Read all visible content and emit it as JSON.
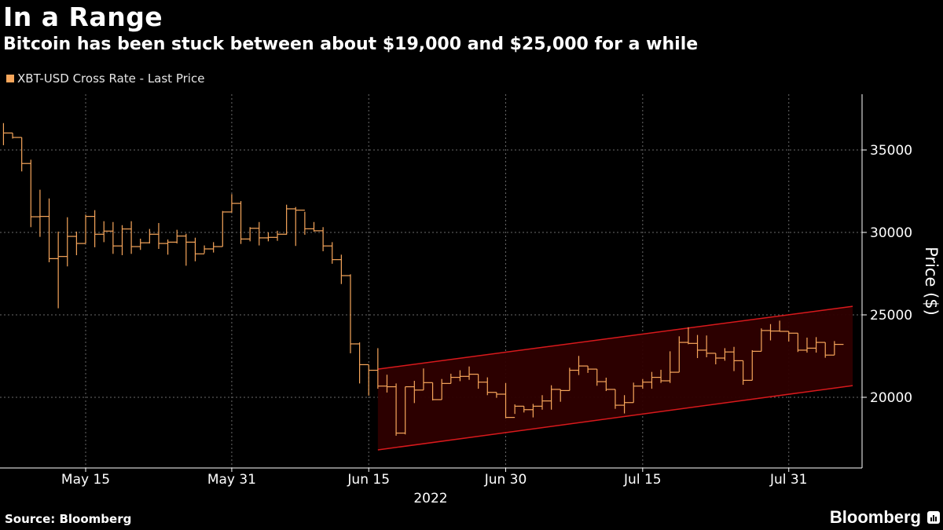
{
  "header": {
    "title": "In a Range",
    "subtitle": "Bitcoin has been stuck between about $19,000 and $25,000 for a while"
  },
  "footer": {
    "source": "Source: Bloomberg",
    "logo": "Bloomberg"
  },
  "colors": {
    "series": "#f7a65b",
    "channel_line": "#d8191c",
    "channel_fill": "#2e0000",
    "grid": "#6a6a6a",
    "background": "#000000"
  },
  "chart_data": {
    "type": "bar",
    "style": "high-low-close step bars",
    "title": "In a Range",
    "subtitle": "Bitcoin has been stuck between about $19,000 and $25,000 for a while",
    "legend": {
      "entries": [
        "XBT-USD Cross Rate - Last Price"
      ],
      "placement": "top-left"
    },
    "xlabel": "2022",
    "ylabel": "Price ($)",
    "x_ticks": [
      {
        "date": "2022-05-15",
        "label": "May 15"
      },
      {
        "date": "2022-05-31",
        "label": "May 31"
      },
      {
        "date": "2022-06-15",
        "label": "Jun 15"
      },
      {
        "date": "2022-06-30",
        "label": "Jun 30"
      },
      {
        "date": "2022-07-15",
        "label": "Jul 15"
      },
      {
        "date": "2022-07-31",
        "label": "Jul 31"
      }
    ],
    "y_ticks": [
      20000,
      25000,
      30000,
      35000
    ],
    "y_tick_labels": [
      "20000",
      "25000",
      "30000",
      "35000"
    ],
    "ylim": [
      15700,
      38400
    ],
    "xlim": [
      "2022-05-06",
      "2022-08-07"
    ],
    "y_axis_side": "right",
    "grid": true,
    "series": [
      {
        "name": "XBT-USD Cross Rate - Last Price",
        "fields": [
          "date",
          "high",
          "low",
          "close"
        ],
        "values": [
          [
            "2022-05-06",
            36630,
            35290,
            36030
          ],
          [
            "2022-05-07",
            36030,
            35690,
            35760
          ],
          [
            "2022-05-08",
            35760,
            33700,
            34180
          ],
          [
            "2022-05-09",
            34410,
            30320,
            30950
          ],
          [
            "2022-05-10",
            32590,
            29730,
            30970
          ],
          [
            "2022-05-11",
            32060,
            28190,
            28410
          ],
          [
            "2022-05-12",
            30050,
            25400,
            28540
          ],
          [
            "2022-05-13",
            30920,
            27940,
            29760
          ],
          [
            "2022-05-14",
            30050,
            28620,
            29330
          ],
          [
            "2022-05-15",
            31080,
            29330,
            30970
          ],
          [
            "2022-05-16",
            31350,
            29100,
            29890
          ],
          [
            "2022-05-17",
            30680,
            29410,
            30080
          ],
          [
            "2022-05-18",
            30630,
            28700,
            29180
          ],
          [
            "2022-05-19",
            30440,
            28620,
            30210
          ],
          [
            "2022-05-20",
            30680,
            28700,
            29140
          ],
          [
            "2022-05-21",
            29620,
            28940,
            29370
          ],
          [
            "2022-05-22",
            30210,
            29330,
            29890
          ],
          [
            "2022-05-23",
            30570,
            29000,
            29330
          ],
          [
            "2022-05-24",
            29570,
            28650,
            29410
          ],
          [
            "2022-05-25",
            30160,
            29330,
            29780
          ],
          [
            "2022-05-26",
            29920,
            27980,
            29410
          ],
          [
            "2022-05-27",
            29680,
            28250,
            28700
          ],
          [
            "2022-05-28",
            29210,
            28730,
            29000
          ],
          [
            "2022-05-29",
            29410,
            28780,
            29140
          ],
          [
            "2022-05-30",
            31300,
            29140,
            31240
          ],
          [
            "2022-05-31",
            32320,
            31210,
            31760
          ],
          [
            "2022-06-01",
            31900,
            29300,
            29600
          ],
          [
            "2022-06-02",
            30320,
            29460,
            30250
          ],
          [
            "2022-06-03",
            30630,
            29210,
            29670
          ],
          [
            "2022-06-04",
            30000,
            29460,
            29700
          ],
          [
            "2022-06-05",
            30100,
            29490,
            29890
          ],
          [
            "2022-06-06",
            31680,
            29860,
            31430
          ],
          [
            "2022-06-07",
            31540,
            29180,
            31350
          ],
          [
            "2022-06-08",
            31250,
            29860,
            30220
          ],
          [
            "2022-06-09",
            30630,
            30050,
            30100
          ],
          [
            "2022-06-10",
            30320,
            28860,
            29180
          ],
          [
            "2022-06-11",
            29410,
            28100,
            28350
          ],
          [
            "2022-06-12",
            28650,
            26870,
            27380
          ],
          [
            "2022-06-13",
            27460,
            22670,
            23240
          ],
          [
            "2022-06-14",
            23330,
            20840,
            21980
          ],
          [
            "2022-06-15",
            21980,
            20100,
            21640
          ],
          [
            "2022-06-16",
            22980,
            20520,
            20680
          ],
          [
            "2022-06-17",
            21370,
            20290,
            20640
          ],
          [
            "2022-06-18",
            20840,
            17670,
            17830
          ],
          [
            "2022-06-19",
            20640,
            17750,
            20640
          ],
          [
            "2022-06-20",
            21000,
            19650,
            20440
          ],
          [
            "2022-06-21",
            21750,
            20440,
            20890
          ],
          [
            "2022-06-22",
            20890,
            19810,
            19860
          ],
          [
            "2022-06-23",
            21110,
            19860,
            20840
          ],
          [
            "2022-06-24",
            21430,
            20840,
            21210
          ],
          [
            "2022-06-25",
            21640,
            20980,
            21270
          ],
          [
            "2022-06-26",
            21870,
            21060,
            21400
          ],
          [
            "2022-06-27",
            21400,
            20520,
            20920
          ],
          [
            "2022-06-28",
            21210,
            20130,
            20300
          ],
          [
            "2022-06-29",
            20300,
            19970,
            20190
          ],
          [
            "2022-06-30",
            20870,
            18730,
            18780
          ],
          [
            "2022-07-01",
            19570,
            18990,
            19460
          ],
          [
            "2022-07-02",
            19460,
            19080,
            19250
          ],
          [
            "2022-07-03",
            19600,
            18780,
            19460
          ],
          [
            "2022-07-04",
            20130,
            19250,
            19780
          ],
          [
            "2022-07-05",
            20730,
            19250,
            20480
          ],
          [
            "2022-07-06",
            20480,
            19730,
            20410
          ],
          [
            "2022-07-07",
            21790,
            20410,
            21640
          ],
          [
            "2022-07-08",
            22510,
            21350,
            21900
          ],
          [
            "2022-07-09",
            21900,
            21480,
            21710
          ],
          [
            "2022-07-10",
            21710,
            20700,
            20950
          ],
          [
            "2022-07-11",
            21190,
            20380,
            20480
          ],
          [
            "2022-07-12",
            20480,
            19300,
            19520
          ],
          [
            "2022-07-13",
            20130,
            19020,
            19680
          ],
          [
            "2022-07-14",
            20890,
            19680,
            20680
          ],
          [
            "2022-07-15",
            21110,
            20520,
            20920
          ],
          [
            "2022-07-16",
            21540,
            20520,
            21210
          ],
          [
            "2022-07-17",
            21670,
            20870,
            21000
          ],
          [
            "2022-07-18",
            22790,
            20870,
            21520
          ],
          [
            "2022-07-19",
            23700,
            21520,
            23330
          ],
          [
            "2022-07-20",
            24250,
            23220,
            23270
          ],
          [
            "2022-07-21",
            23780,
            22380,
            22860
          ],
          [
            "2022-07-22",
            23750,
            22430,
            22670
          ],
          [
            "2022-07-23",
            22670,
            22000,
            22380
          ],
          [
            "2022-07-24",
            22980,
            22220,
            22750
          ],
          [
            "2022-07-25",
            23060,
            21590,
            22220
          ],
          [
            "2022-07-26",
            22220,
            20760,
            21030
          ],
          [
            "2022-07-27",
            22860,
            21030,
            22790
          ],
          [
            "2022-07-28",
            24180,
            22790,
            24050
          ],
          [
            "2022-07-29",
            24440,
            23450,
            24020
          ],
          [
            "2022-07-30",
            24650,
            23980,
            24000
          ],
          [
            "2022-07-31",
            24000,
            23380,
            23890
          ],
          [
            "2022-08-01",
            23890,
            22750,
            22860
          ],
          [
            "2022-08-02",
            23620,
            22710,
            22980
          ],
          [
            "2022-08-03",
            23650,
            22710,
            23330
          ],
          [
            "2022-08-04",
            23330,
            22400,
            22560
          ],
          [
            "2022-08-05",
            23410,
            22560,
            23210
          ]
        ]
      }
    ],
    "annotations": [
      {
        "type": "channel",
        "start_date": "2022-06-16",
        "end_date": "2022-08-07",
        "upper": [
          21710,
          25520
        ],
        "lower": [
          16810,
          20710
        ]
      }
    ]
  }
}
